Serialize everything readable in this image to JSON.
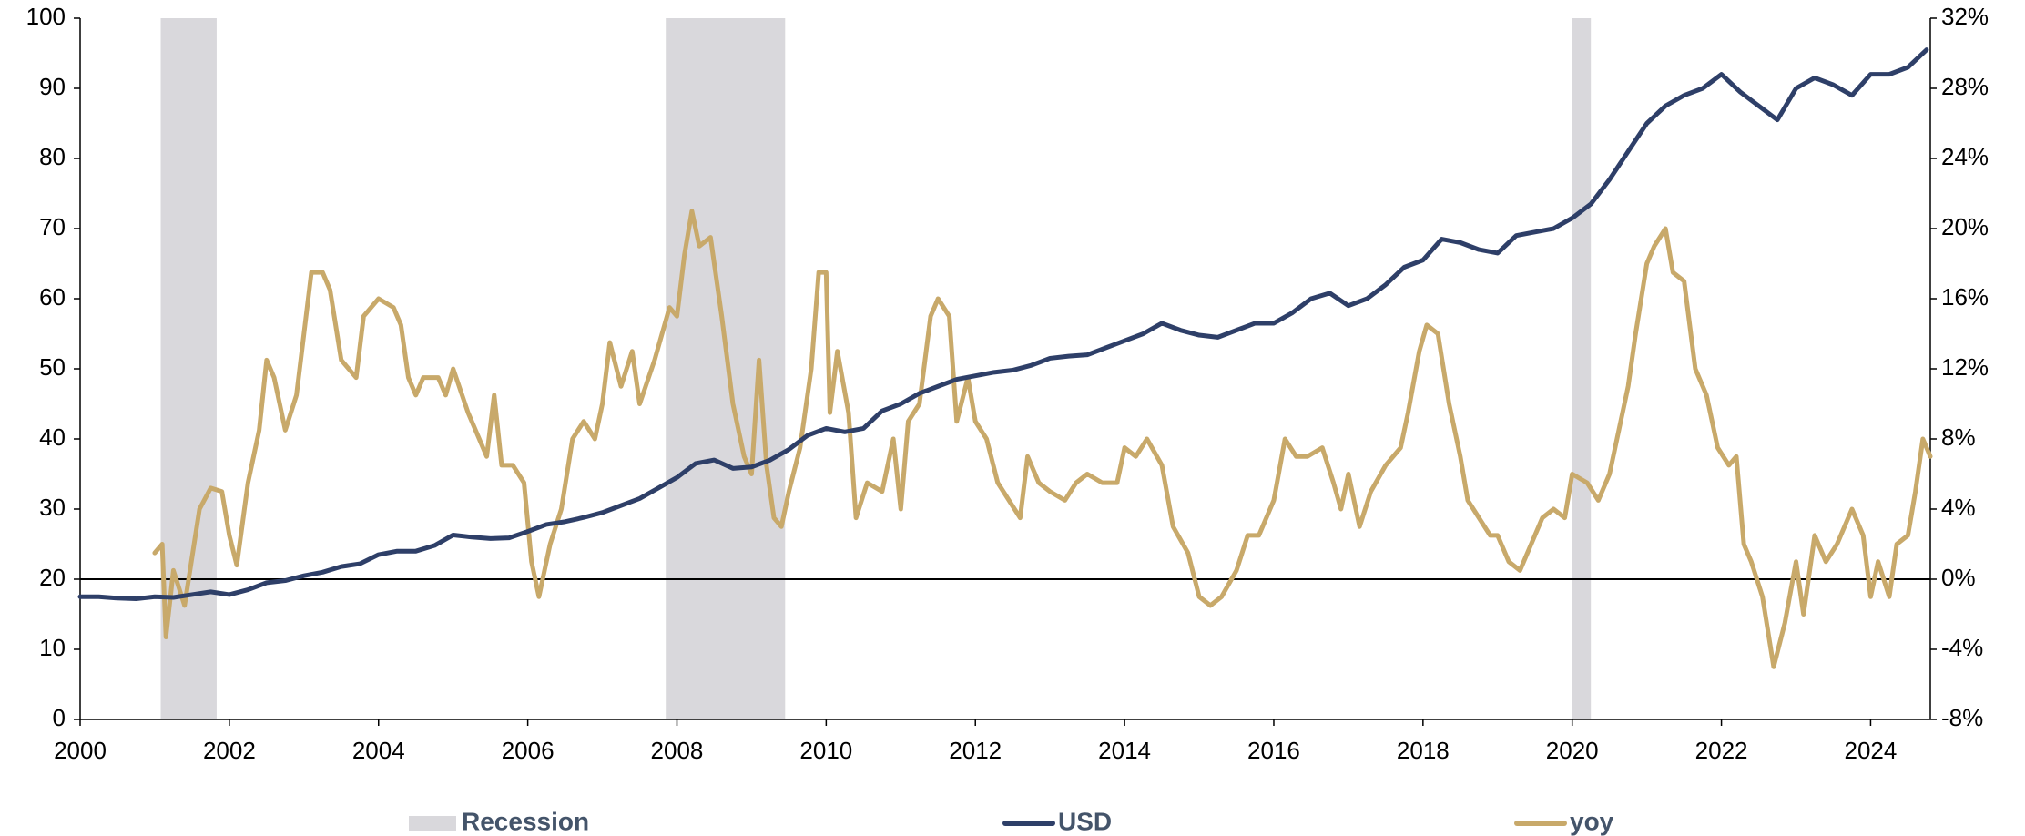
{
  "chart_data": {
    "type": "line",
    "xlim": [
      2000,
      2024.8
    ],
    "xticks": [
      2000,
      2002,
      2004,
      2006,
      2008,
      2010,
      2012,
      2014,
      2016,
      2018,
      2020,
      2022,
      2024
    ],
    "ylim": [
      0,
      100
    ],
    "yticks": [
      0,
      10,
      20,
      30,
      40,
      50,
      60,
      70,
      80,
      90,
      100
    ],
    "y2lim": [
      -8,
      32
    ],
    "y2ticks": [
      {
        "value": -8,
        "label": "-8%"
      },
      {
        "value": -4,
        "label": "-4%"
      },
      {
        "value": 0,
        "label": "0%"
      },
      {
        "value": 4,
        "label": "4%"
      },
      {
        "value": 8,
        "label": "8%"
      },
      {
        "value": 12,
        "label": "12%"
      },
      {
        "value": 16,
        "label": "16%"
      },
      {
        "value": 20,
        "label": "20%"
      },
      {
        "value": 24,
        "label": "24%"
      },
      {
        "value": 28,
        "label": "28%"
      },
      {
        "value": 32,
        "label": "32%"
      }
    ],
    "grid": false,
    "recessions": {
      "name": "Recession",
      "color": "#d9d8dc",
      "ranges": [
        [
          2001.08,
          2001.83
        ],
        [
          2007.85,
          2009.45
        ],
        [
          2020.0,
          2020.25
        ]
      ]
    },
    "reference_line": {
      "axis": "y2",
      "value": 0,
      "color": "#000000"
    },
    "series": [
      {
        "name": "USD",
        "color": "#2e3f68",
        "axis": "y",
        "x": [
          2000.0,
          2000.25,
          2000.5,
          2000.75,
          2001.0,
          2001.25,
          2001.5,
          2001.75,
          2002.0,
          2002.25,
          2002.5,
          2002.75,
          2003.0,
          2003.25,
          2003.5,
          2003.75,
          2004.0,
          2004.25,
          2004.5,
          2004.75,
          2005.0,
          2005.25,
          2005.5,
          2005.75,
          2006.0,
          2006.25,
          2006.5,
          2006.75,
          2007.0,
          2007.25,
          2007.5,
          2007.75,
          2008.0,
          2008.25,
          2008.5,
          2008.75,
          2009.0,
          2009.25,
          2009.5,
          2009.75,
          2010.0,
          2010.25,
          2010.5,
          2010.75,
          2011.0,
          2011.25,
          2011.5,
          2011.75,
          2012.0,
          2012.25,
          2012.5,
          2012.75,
          2013.0,
          2013.25,
          2013.5,
          2013.75,
          2014.0,
          2014.25,
          2014.5,
          2014.75,
          2015.0,
          2015.25,
          2015.5,
          2015.75,
          2016.0,
          2016.25,
          2016.5,
          2016.75,
          2017.0,
          2017.25,
          2017.5,
          2017.75,
          2018.0,
          2018.25,
          2018.5,
          2018.75,
          2019.0,
          2019.25,
          2019.5,
          2019.75,
          2020.0,
          2020.25,
          2020.5,
          2020.75,
          2021.0,
          2021.25,
          2021.5,
          2021.75,
          2022.0,
          2022.25,
          2022.5,
          2022.75,
          2023.0,
          2023.25,
          2023.5,
          2023.75,
          2024.0,
          2024.25,
          2024.5,
          2024.75
        ],
        "values": [
          17.5,
          17.5,
          17.3,
          17.2,
          17.5,
          17.4,
          17.8,
          18.2,
          17.8,
          18.5,
          19.5,
          19.8,
          20.5,
          21.0,
          21.8,
          22.2,
          23.5,
          24.0,
          24.0,
          24.8,
          26.3,
          26.0,
          25.8,
          25.9,
          26.8,
          27.8,
          28.2,
          28.8,
          29.5,
          30.5,
          31.5,
          33.0,
          34.5,
          36.5,
          37.0,
          35.8,
          36.0,
          37.0,
          38.5,
          40.5,
          41.5,
          41.0,
          41.5,
          44.0,
          45.0,
          46.5,
          47.5,
          48.5,
          49.0,
          49.5,
          49.8,
          50.5,
          51.5,
          51.8,
          52.0,
          53.0,
          54.0,
          55.0,
          56.5,
          55.5,
          54.8,
          54.5,
          55.5,
          56.5,
          56.5,
          58.0,
          60.0,
          60.8,
          59.0,
          60.0,
          62.0,
          64.5,
          65.5,
          68.5,
          68.0,
          67.0,
          66.5,
          69.0,
          69.5,
          70.0,
          71.5,
          73.5,
          77.0,
          81.0,
          85.0,
          87.5,
          89.0,
          90.0,
          92.0,
          89.5,
          87.5,
          85.5,
          90.0,
          91.5,
          90.5,
          89.0,
          92.0,
          92.0,
          93.0,
          95.5
        ]
      },
      {
        "name": "yoy",
        "color": "#c8a96a",
        "axis": "y2",
        "x": [
          2001.0,
          2001.1,
          2001.15,
          2001.25,
          2001.4,
          2001.6,
          2001.75,
          2001.9,
          2002.0,
          2002.1,
          2002.25,
          2002.4,
          2002.5,
          2002.6,
          2002.75,
          2002.9,
          2003.0,
          2003.1,
          2003.25,
          2003.35,
          2003.5,
          2003.7,
          2003.8,
          2004.0,
          2004.2,
          2004.3,
          2004.4,
          2004.5,
          2004.6,
          2004.8,
          2004.9,
          2005.0,
          2005.2,
          2005.35,
          2005.45,
          2005.55,
          2005.65,
          2005.8,
          2005.95,
          2006.05,
          2006.15,
          2006.3,
          2006.45,
          2006.6,
          2006.75,
          2006.9,
          2007.0,
          2007.1,
          2007.25,
          2007.4,
          2007.5,
          2007.7,
          2007.9,
          2008.0,
          2008.1,
          2008.2,
          2008.3,
          2008.45,
          2008.6,
          2008.75,
          2008.9,
          2009.0,
          2009.1,
          2009.2,
          2009.3,
          2009.4,
          2009.5,
          2009.65,
          2009.8,
          2009.9,
          2010.0,
          2010.05,
          2010.15,
          2010.3,
          2010.4,
          2010.55,
          2010.75,
          2010.9,
          2011.0,
          2011.1,
          2011.25,
          2011.4,
          2011.5,
          2011.65,
          2011.75,
          2011.9,
          2012.0,
          2012.15,
          2012.3,
          2012.45,
          2012.6,
          2012.7,
          2012.85,
          2013.0,
          2013.2,
          2013.35,
          2013.5,
          2013.7,
          2013.9,
          2014.0,
          2014.15,
          2014.3,
          2014.5,
          2014.65,
          2014.85,
          2015.0,
          2015.15,
          2015.3,
          2015.5,
          2015.65,
          2015.8,
          2016.0,
          2016.15,
          2016.3,
          2016.45,
          2016.65,
          2016.8,
          2016.9,
          2017.0,
          2017.15,
          2017.3,
          2017.5,
          2017.7,
          2017.8,
          2017.95,
          2018.05,
          2018.2,
          2018.35,
          2018.5,
          2018.6,
          2018.75,
          2018.9,
          2019.0,
          2019.15,
          2019.3,
          2019.45,
          2019.6,
          2019.75,
          2019.9,
          2020.0,
          2020.2,
          2020.35,
          2020.5,
          2020.6,
          2020.75,
          2020.85,
          2021.0,
          2021.1,
          2021.25,
          2021.35,
          2021.5,
          2021.65,
          2021.8,
          2021.95,
          2022.1,
          2022.2,
          2022.3,
          2022.4,
          2022.55,
          2022.7,
          2022.85,
          2023.0,
          2023.1,
          2023.25,
          2023.4,
          2023.55,
          2023.75,
          2023.9,
          2024.0,
          2024.1,
          2024.25,
          2024.35,
          2024.5,
          2024.6,
          2024.7,
          2024.8
        ],
        "values": [
          1.5,
          2.0,
          -3.3,
          0.5,
          -1.5,
          4.0,
          5.2,
          5.0,
          2.5,
          0.8,
          5.5,
          8.5,
          12.5,
          11.5,
          8.5,
          10.5,
          14.0,
          17.5,
          17.5,
          16.5,
          12.5,
          11.5,
          15.0,
          16.0,
          15.5,
          14.5,
          11.5,
          10.5,
          11.5,
          11.5,
          10.5,
          12.0,
          9.5,
          8.0,
          7.0,
          10.5,
          6.5,
          6.5,
          5.5,
          1.0,
          -1.0,
          2.0,
          4.0,
          8.0,
          9.0,
          8.0,
          10.0,
          13.5,
          11.0,
          13.0,
          10.0,
          12.5,
          15.5,
          15.0,
          18.5,
          21.0,
          19.0,
          19.5,
          15.0,
          10.0,
          7.0,
          6.0,
          12.5,
          6.5,
          3.5,
          3.0,
          5.0,
          7.5,
          12.0,
          17.5,
          17.5,
          9.5,
          13.0,
          9.5,
          3.5,
          5.5,
          5.0,
          8.0,
          4.0,
          9.0,
          10.0,
          15.0,
          16.0,
          15.0,
          9.0,
          11.5,
          9.0,
          8.0,
          5.5,
          4.5,
          3.5,
          7.0,
          5.5,
          5.0,
          4.5,
          5.5,
          6.0,
          5.5,
          5.5,
          7.5,
          7.0,
          8.0,
          6.5,
          3.0,
          1.5,
          -1.0,
          -1.5,
          -1.0,
          0.5,
          2.5,
          2.5,
          4.5,
          8.0,
          7.0,
          7.0,
          7.5,
          5.5,
          4.0,
          6.0,
          3.0,
          5.0,
          6.5,
          7.5,
          9.5,
          13.0,
          14.5,
          14.0,
          10.0,
          7.0,
          4.5,
          3.5,
          2.5,
          2.5,
          1.0,
          0.5,
          2.0,
          3.5,
          4.0,
          3.5,
          6.0,
          5.5,
          4.5,
          6.0,
          8.0,
          11.0,
          14.0,
          18.0,
          19.0,
          20.0,
          17.5,
          17.0,
          12.0,
          10.5,
          7.5,
          6.5,
          7.0,
          2.0,
          1.0,
          -1.0,
          -5.0,
          -2.5,
          1.0,
          -2.0,
          2.5,
          1.0,
          2.0,
          4.0,
          2.5,
          -1.0,
          1.0,
          -1.0,
          2.0,
          2.5,
          5.0,
          8.0,
          7.0
        ]
      }
    ]
  }
}
